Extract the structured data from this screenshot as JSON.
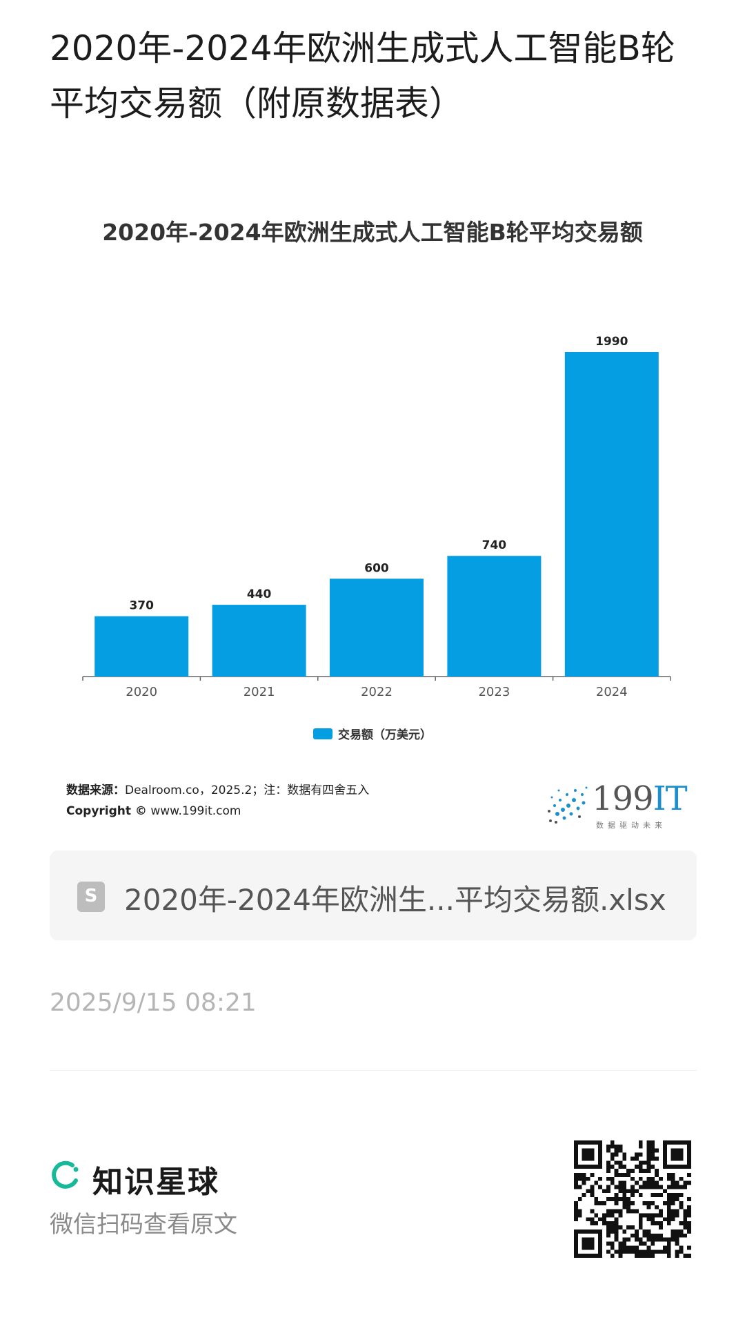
{
  "page": {
    "title": "2020年-2024年欧洲生成式人工智能B轮平均交易额（附原数据表）"
  },
  "chart_data": {
    "type": "bar",
    "title": "2020年-2024年欧洲生成式人工智能B轮平均交易额",
    "categories": [
      "2020",
      "2021",
      "2022",
      "2023",
      "2024"
    ],
    "series": [
      {
        "name": "交易额（万美元）",
        "values": [
          370,
          440,
          600,
          740,
          1990
        ]
      }
    ],
    "data_labels": [
      "370",
      "440",
      "600",
      "740",
      "1990"
    ],
    "legend": "bottom",
    "grid": false,
    "ylim": [
      0,
      1990
    ],
    "bar_color": "#069ee3"
  },
  "source": {
    "label": "数据来源：",
    "text": "Dealroom.co，2025.2；注：数据有四舍五入",
    "copyright_label": "Copyright ©",
    "copyright_text": " www.199it.com"
  },
  "logo": {
    "text_num": "199",
    "text_it": "IT",
    "tagline": "数据驱动未来"
  },
  "attachment": {
    "icon": "spreadsheet-file-icon",
    "filename": "2020年-2024年欧洲生...平均交易额.xlsx"
  },
  "post": {
    "timestamp": "2025/9/15 08:21"
  },
  "footer": {
    "brand_name": "知识星球",
    "scan_hint": "微信扫码查看原文",
    "brand_color": "#16b998"
  }
}
